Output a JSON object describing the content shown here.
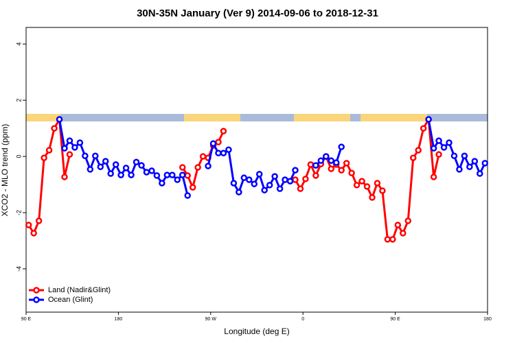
{
  "chart_data": {
    "type": "line",
    "title": "30N-35N January (Ver 9)   2014-09-06 to 2018-12-31",
    "x_label": "Longitude (deg E)",
    "y_label": "XCO2 - MLO trend (ppm)",
    "xlim": [
      90,
      540
    ],
    "ylim": [
      -5.54,
      4.59
    ],
    "xticks": [
      {
        "value": 90,
        "label": "90 E"
      },
      180,
      {
        "value": 270,
        "label": "90 W"
      },
      {
        "value": 360,
        "label": "0"
      },
      {
        "value": 450,
        "label": "90 E"
      },
      180
    ],
    "yticks": [
      -4,
      -2,
      0,
      2,
      4
    ],
    "legend": "bottom-left",
    "series": [
      {
        "name": "Land (Nadir&Glint)",
        "color": "#ff0000",
        "x": [
          92.5,
          97.5,
          102.5,
          107.5,
          112.5,
          117.5,
          122.5,
          127.5,
          132.5,
          187.5,
          242.5,
          247.5,
          252.5,
          257.5,
          262.5,
          267.5,
          272.5,
          277.5,
          282.5,
          317.5,
          352.5,
          357.5,
          362.5,
          367.5,
          372.5,
          377.5,
          382.5,
          387.5,
          392.5,
          397.5,
          402.5,
          407.5,
          412.5,
          417.5,
          422.5,
          427.5,
          432.5,
          437.5,
          442.5,
          447.5,
          452.5,
          457.5,
          462.5,
          467.5,
          472.5,
          477.5,
          482.5,
          487.5,
          492.5
        ],
        "values": [
          -2.44,
          -2.73,
          -2.29,
          -0.05,
          0.22,
          1.0,
          1.32,
          -0.73,
          0.07,
          null,
          -0.39,
          -0.68,
          -1.1,
          -0.39,
          0,
          -0.05,
          0.39,
          0.51,
          0.9,
          null,
          -0.83,
          -1.15,
          -0.8,
          -0.29,
          -0.68,
          -0.27,
          0,
          -0.44,
          -0.29,
          -0.49,
          -0.24,
          -0.59,
          -1.02,
          -0.88,
          -1.07,
          -1.46,
          -0.95,
          -1.22,
          -2.95,
          -2.95,
          -2.44,
          -2.73,
          -2.29,
          -0.05,
          0.22,
          1.0,
          1.32,
          -0.73,
          0.07
        ]
      },
      {
        "name": "Ocean (Glint)",
        "color": "#0000ff",
        "x": [
          122.5,
          127.5,
          132.5,
          137.5,
          142.5,
          147.5,
          152.5,
          157.5,
          162.5,
          167.5,
          172.5,
          177.5,
          182.5,
          187.5,
          192.5,
          197.5,
          202.5,
          207.5,
          212.5,
          217.5,
          222.5,
          227.5,
          232.5,
          237.5,
          242.5,
          247.5,
          257.5,
          267.5,
          272.5,
          277.5,
          282.5,
          287.5,
          292.5,
          297.5,
          302.5,
          307.5,
          312.5,
          317.5,
          322.5,
          327.5,
          332.5,
          337.5,
          342.5,
          347.5,
          352.5,
          362.5,
          372.5,
          377.5,
          382.5,
          387.5,
          392.5,
          397.5,
          440,
          482.5,
          487.5,
          492.5,
          497.5,
          502.5,
          507.5,
          512.5,
          517.5,
          522.5,
          527.5,
          532.5,
          537.5
        ],
        "values": [
          1.32,
          0.29,
          0.56,
          0.32,
          0.49,
          0.02,
          -0.46,
          0.02,
          -0.37,
          -0.17,
          -0.61,
          -0.29,
          -0.66,
          -0.41,
          -0.66,
          -0.2,
          -0.32,
          -0.56,
          -0.51,
          -0.68,
          -0.95,
          -0.66,
          -0.66,
          -0.83,
          -0.66,
          -1.39,
          null,
          -0.34,
          0.46,
          0.12,
          0.12,
          0.24,
          -0.95,
          -1.27,
          -0.76,
          -0.83,
          -0.98,
          -0.63,
          -1.2,
          -1.02,
          -0.71,
          -1.15,
          -0.83,
          -0.88,
          -0.49,
          null,
          -0.32,
          -0.15,
          0,
          -0.15,
          -0.22,
          0.34,
          null,
          1.32,
          0.29,
          0.56,
          0.32,
          0.49,
          0.02,
          -0.46,
          0.02,
          -0.37,
          -0.17,
          -0.61,
          -0.24
        ]
      }
    ]
  }
}
